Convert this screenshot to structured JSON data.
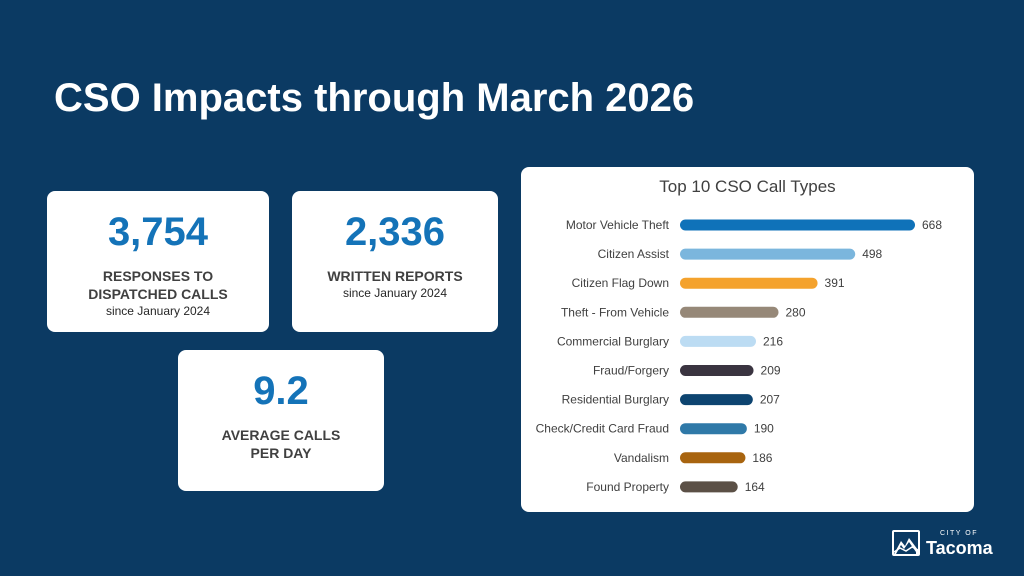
{
  "title": "CSO Impacts through March 2026",
  "cards": [
    {
      "number": "3,754",
      "label_line1": "RESPONSES TO",
      "label_line2": "DISPATCHED CALLS",
      "sub": "since January 2024"
    },
    {
      "number": "2,336",
      "label_line1": "WRITTEN REPORTS",
      "sub": "since January 2024"
    },
    {
      "number": "9.2",
      "label_line1": "AVERAGE CALLS",
      "label_line2": "PER DAY"
    }
  ],
  "chart_data": {
    "type": "bar",
    "orientation": "horizontal",
    "title": "Top 10 CSO Call Types",
    "categories": [
      "Motor Vehicle Theft",
      "Citizen Assist",
      "Citizen Flag Down",
      "Theft - From Vehicle",
      "Commercial Burglary",
      "Fraud/Forgery",
      "Residential Burglary",
      "Check/Credit Card Fraud",
      "Vandalism",
      "Found Property"
    ],
    "values": [
      668,
      498,
      391,
      280,
      216,
      209,
      207,
      190,
      186,
      164
    ],
    "value_labels": [
      "668",
      "498",
      "391",
      "280",
      "216",
      "209",
      "207",
      "190",
      "186",
      "164"
    ],
    "colors": [
      "#0f72b9",
      "#7bb6dd",
      "#f4a22d",
      "#968878",
      "#bcdcf3",
      "#3a3440",
      "#0d4470",
      "#2f79a8",
      "#a8640f",
      "#5b5046"
    ],
    "xlim": [
      0,
      668
    ],
    "grid": false,
    "legend": "none",
    "data_labels": true
  },
  "logo": {
    "city": "CITY OF",
    "name": "Tacoma"
  }
}
